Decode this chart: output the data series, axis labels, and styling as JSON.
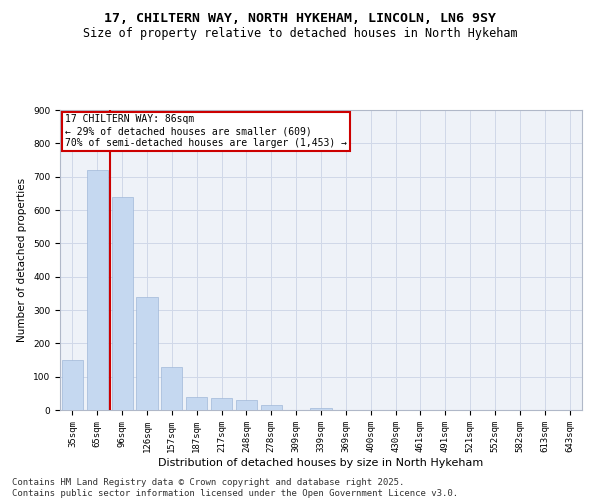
{
  "title": "17, CHILTERN WAY, NORTH HYKEHAM, LINCOLN, LN6 9SY",
  "subtitle": "Size of property relative to detached houses in North Hykeham",
  "xlabel": "Distribution of detached houses by size in North Hykeham",
  "ylabel": "Number of detached properties",
  "categories": [
    "35sqm",
    "65sqm",
    "96sqm",
    "126sqm",
    "157sqm",
    "187sqm",
    "217sqm",
    "248sqm",
    "278sqm",
    "309sqm",
    "339sqm",
    "369sqm",
    "400sqm",
    "430sqm",
    "461sqm",
    "491sqm",
    "521sqm",
    "552sqm",
    "582sqm",
    "613sqm",
    "643sqm"
  ],
  "values": [
    150,
    720,
    640,
    340,
    130,
    40,
    37,
    30,
    15,
    0,
    5,
    0,
    0,
    0,
    0,
    0,
    0,
    0,
    0,
    0,
    0
  ],
  "bar_color": "#c5d8f0",
  "bar_edge_color": "#a0b8d8",
  "red_line_x": 1.5,
  "annotation_line1": "17 CHILTERN WAY: 86sqm",
  "annotation_line2": "← 29% of detached houses are smaller (609)",
  "annotation_line3": "70% of semi-detached houses are larger (1,453) →",
  "annotation_box_color": "#ffffff",
  "annotation_box_edge": "#cc0000",
  "red_line_color": "#cc0000",
  "ylim": [
    0,
    900
  ],
  "yticks": [
    0,
    100,
    200,
    300,
    400,
    500,
    600,
    700,
    800,
    900
  ],
  "grid_color": "#d0d8e8",
  "background_color": "#eef2f8",
  "footer_line1": "Contains HM Land Registry data © Crown copyright and database right 2025.",
  "footer_line2": "Contains public sector information licensed under the Open Government Licence v3.0.",
  "title_fontsize": 9.5,
  "subtitle_fontsize": 8.5,
  "footer_fontsize": 6.5,
  "annotation_fontsize": 7,
  "ylabel_fontsize": 7.5,
  "xlabel_fontsize": 8,
  "tick_fontsize": 6.5
}
